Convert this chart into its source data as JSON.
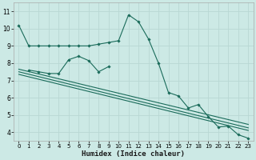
{
  "xlabel": "Humidex (Indice chaleur)",
  "xlim": [
    -0.5,
    23.5
  ],
  "ylim": [
    3.5,
    11.5
  ],
  "xticks": [
    0,
    1,
    2,
    3,
    4,
    5,
    6,
    7,
    8,
    9,
    10,
    11,
    12,
    13,
    14,
    15,
    16,
    17,
    18,
    19,
    20,
    21,
    22,
    23
  ],
  "yticks": [
    4,
    5,
    6,
    7,
    8,
    9,
    10,
    11
  ],
  "bg_color": "#cce9e5",
  "grid_color": "#b8d8d4",
  "line_color": "#1a6b5a",
  "line1_x": [
    0,
    1,
    2,
    3,
    4,
    5,
    6,
    7,
    8,
    9,
    10,
    11,
    12,
    13,
    14,
    15,
    16,
    17,
    18,
    19,
    20,
    21,
    22,
    23
  ],
  "line1_y": [
    10.2,
    9.0,
    9.0,
    9.0,
    9.0,
    9.0,
    9.0,
    9.0,
    9.1,
    9.2,
    9.3,
    10.8,
    10.4,
    9.4,
    8.0,
    6.3,
    6.1,
    5.4,
    5.6,
    4.9,
    4.3,
    4.35,
    3.85,
    3.65
  ],
  "line2_x": [
    1,
    2,
    3,
    4,
    5,
    6,
    7,
    8,
    9
  ],
  "line2_y": [
    7.6,
    7.5,
    7.4,
    7.4,
    8.2,
    8.4,
    8.15,
    7.5,
    7.8
  ],
  "line3_x": [
    0,
    23
  ],
  "line3_y": [
    7.35,
    4.1
  ],
  "line4_x": [
    0,
    23
  ],
  "line4_y": [
    7.5,
    4.25
  ],
  "line5_x": [
    0,
    23
  ],
  "line5_y": [
    7.65,
    4.45
  ]
}
